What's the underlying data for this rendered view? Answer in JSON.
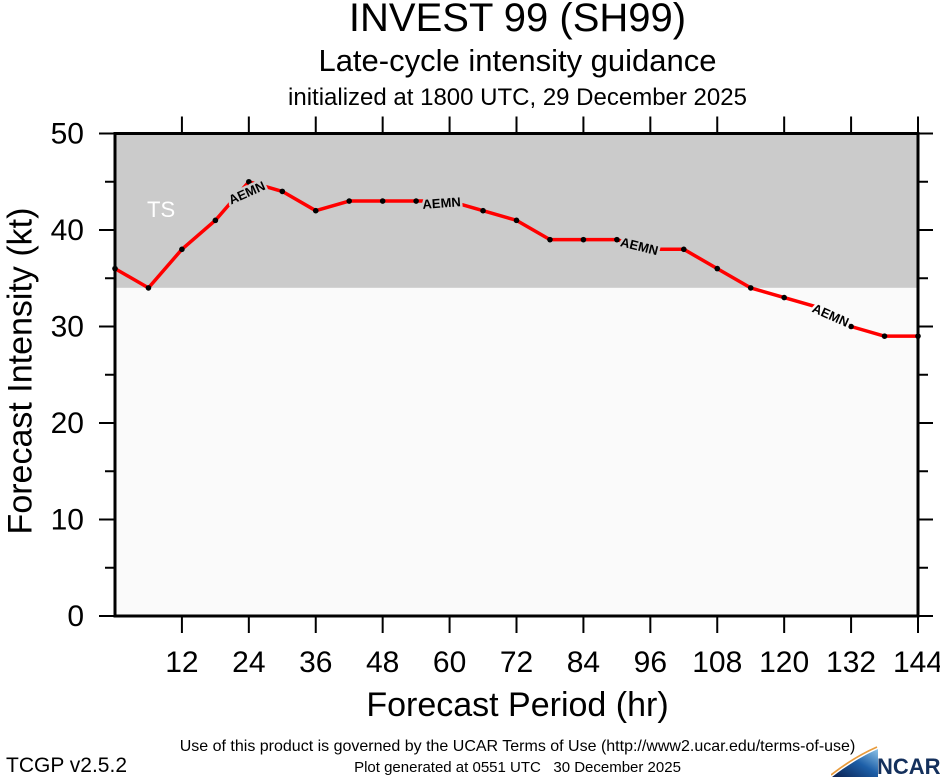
{
  "chart_data": {
    "type": "line",
    "title": "INVEST 99 (SH99)",
    "subtitle": "Late-cycle intensity guidance",
    "init_line": "initialized at 1800 UTC, 29 December 2025",
    "xlabel": "Forecast Period (hr)",
    "ylabel": "Forecast Intensity (kt)",
    "xlim": [
      0,
      144
    ],
    "ylim": [
      0,
      50
    ],
    "x_ticks": [
      12,
      24,
      36,
      48,
      60,
      72,
      84,
      96,
      108,
      120,
      132,
      144
    ],
    "y_ticks": [
      0,
      10,
      20,
      30,
      40,
      50
    ],
    "y_minor_ticks": [
      5,
      15,
      25,
      35,
      45
    ],
    "grid": false,
    "legend": "none",
    "bands": [
      {
        "id": "ts",
        "label": "TS",
        "from": 34,
        "to": 50,
        "color": "#cbcbcb",
        "label_color": "#ffffff"
      },
      {
        "id": "below-ts",
        "label": "",
        "from": 0,
        "to": 34,
        "color": "#fafafa",
        "label_color": ""
      }
    ],
    "series": [
      {
        "name": "AEMN",
        "color": "#ff0000",
        "marker_color": "#000000",
        "x": [
          0,
          6,
          12,
          18,
          24,
          30,
          36,
          42,
          48,
          54,
          60,
          66,
          72,
          78,
          84,
          90,
          96,
          102,
          108,
          114,
          120,
          126,
          132,
          138,
          144
        ],
        "values": [
          36,
          34,
          38,
          41,
          45,
          44,
          42,
          43,
          43,
          43,
          43,
          42,
          41,
          39,
          39,
          39,
          38,
          38,
          36,
          34,
          33,
          32,
          30,
          29,
          29
        ],
        "inline_labels": [
          {
            "text": "AEMN",
            "at_hour": 24,
            "dx": -2,
            "dy": 11,
            "rotate": -24
          },
          {
            "text": "AEMN",
            "at_hour": 60,
            "dx": -8,
            "dy": 2,
            "rotate": -4
          },
          {
            "text": "AEMN",
            "at_hour": 96,
            "dx": -11,
            "dy": -3,
            "rotate": 14
          },
          {
            "text": "AEMN",
            "at_hour": 126,
            "dx": 13,
            "dy": 8,
            "rotate": 24
          }
        ]
      }
    ]
  },
  "footer": {
    "terms": "Use of this product is governed by the UCAR Terms of Use (http://www2.ucar.edu/terms-of-use)",
    "version": "TCGP v2.5.2",
    "generated": "Plot generated at 0551 UTC   30 December 2025",
    "logo_text": "NCAR"
  }
}
